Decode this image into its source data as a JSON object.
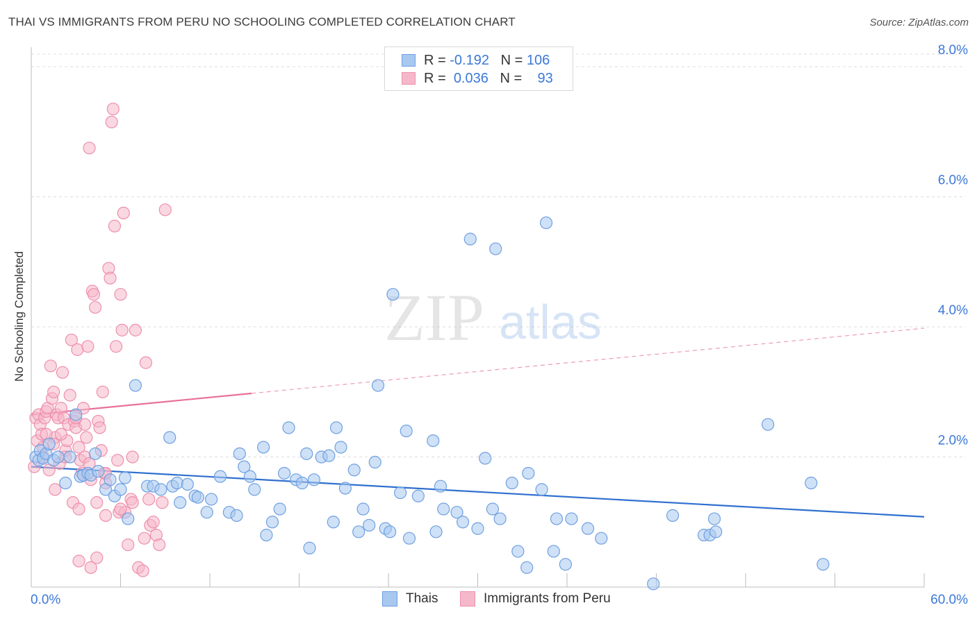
{
  "title": "THAI VS IMMIGRANTS FROM PERU NO SCHOOLING COMPLETED CORRELATION CHART",
  "source": "Source: ZipAtlas.com",
  "watermark": {
    "zip": "ZIP",
    "atlas": "atlas"
  },
  "legend": {
    "rows": [
      {
        "r_label": "R =",
        "r_value": "-0.192",
        "n_label": "N =",
        "n_value": "106",
        "color": "#a8c8f0"
      },
      {
        "r_label": "R =",
        "r_value": "0.036",
        "n_label": "N =",
        "n_value": "93",
        "color": "#f5b8cb"
      }
    ]
  },
  "bottom_legend": [
    {
      "label": "Thais",
      "color": "#a8c8f0"
    },
    {
      "label": "Immigrants from Peru",
      "color": "#f5b8cb"
    }
  ],
  "chart_data": {
    "type": "scatter",
    "title": "THAI VS IMMIGRANTS FROM PERU NO SCHOOLING COMPLETED CORRELATION CHART",
    "xlabel": "",
    "ylabel": "No Schooling Completed",
    "xlim": [
      0,
      60
    ],
    "ylim": [
      0,
      8.3
    ],
    "x_tick_labels": [
      "0.0%",
      "60.0%"
    ],
    "y_ticks": [
      2,
      4,
      6,
      8
    ],
    "y_tick_labels": [
      "2.0%",
      "4.0%",
      "6.0%",
      "8.0%"
    ],
    "grid": true,
    "legend_position": "top-center",
    "series": [
      {
        "name": "Thais",
        "color": "#6fa0e0",
        "fill": "#a8c8f0",
        "trend": {
          "x0": 0,
          "y0": 1.85,
          "x1": 60,
          "y1": 1.08,
          "solid_to": 60,
          "color": "#2f6fcf"
        },
        "points": [
          [
            0.3,
            2.0
          ],
          [
            0.5,
            1.95
          ],
          [
            0.6,
            2.1
          ],
          [
            0.8,
            1.98
          ],
          [
            1.0,
            2.05
          ],
          [
            1.2,
            2.2
          ],
          [
            1.5,
            1.95
          ],
          [
            1.8,
            2.0
          ],
          [
            2.3,
            1.6
          ],
          [
            2.6,
            2.0
          ],
          [
            3.0,
            2.65
          ],
          [
            3.3,
            1.7
          ],
          [
            3.5,
            1.72
          ],
          [
            3.8,
            1.75
          ],
          [
            4.0,
            1.72
          ],
          [
            4.3,
            2.05
          ],
          [
            4.5,
            1.78
          ],
          [
            5.0,
            1.5
          ],
          [
            5.3,
            1.65
          ],
          [
            5.6,
            1.4
          ],
          [
            6.0,
            1.5
          ],
          [
            6.3,
            1.68
          ],
          [
            6.5,
            1.05
          ],
          [
            7.0,
            3.1
          ],
          [
            7.8,
            1.55
          ],
          [
            8.2,
            1.55
          ],
          [
            8.7,
            1.5
          ],
          [
            9.3,
            2.3
          ],
          [
            9.5,
            1.55
          ],
          [
            9.8,
            1.6
          ],
          [
            10.0,
            1.3
          ],
          [
            10.5,
            1.58
          ],
          [
            11.0,
            1.4
          ],
          [
            11.2,
            1.38
          ],
          [
            11.8,
            1.15
          ],
          [
            12.1,
            1.35
          ],
          [
            12.7,
            1.7
          ],
          [
            13.3,
            1.15
          ],
          [
            13.8,
            1.1
          ],
          [
            14.0,
            2.05
          ],
          [
            14.3,
            1.85
          ],
          [
            14.7,
            1.7
          ],
          [
            15.0,
            1.5
          ],
          [
            15.6,
            2.15
          ],
          [
            15.8,
            0.8
          ],
          [
            16.2,
            1.0
          ],
          [
            16.7,
            1.2
          ],
          [
            17.0,
            1.75
          ],
          [
            17.3,
            2.45
          ],
          [
            17.8,
            1.65
          ],
          [
            18.2,
            1.6
          ],
          [
            18.5,
            2.05
          ],
          [
            18.7,
            0.6
          ],
          [
            19.0,
            1.65
          ],
          [
            19.5,
            2.0
          ],
          [
            20.0,
            2.02
          ],
          [
            20.3,
            1.0
          ],
          [
            20.5,
            2.45
          ],
          [
            20.8,
            2.15
          ],
          [
            21.1,
            1.52
          ],
          [
            21.7,
            1.8
          ],
          [
            22.0,
            0.85
          ],
          [
            22.3,
            1.2
          ],
          [
            22.7,
            0.95
          ],
          [
            23.1,
            1.92
          ],
          [
            23.3,
            3.1
          ],
          [
            23.8,
            0.9
          ],
          [
            24.1,
            0.85
          ],
          [
            24.3,
            4.5
          ],
          [
            24.8,
            1.45
          ],
          [
            25.2,
            2.4
          ],
          [
            25.4,
            0.75
          ],
          [
            26.0,
            1.4
          ],
          [
            27.0,
            2.25
          ],
          [
            27.2,
            0.85
          ],
          [
            27.5,
            1.55
          ],
          [
            27.7,
            1.2
          ],
          [
            28.6,
            1.15
          ],
          [
            29.0,
            1.0
          ],
          [
            29.5,
            5.35
          ],
          [
            30.0,
            0.9
          ],
          [
            30.5,
            1.98
          ],
          [
            31.0,
            1.2
          ],
          [
            31.5,
            1.05
          ],
          [
            31.2,
            5.2
          ],
          [
            32.3,
            1.6
          ],
          [
            32.7,
            0.55
          ],
          [
            33.3,
            0.3
          ],
          [
            33.4,
            1.75
          ],
          [
            34.3,
            1.5
          ],
          [
            34.6,
            5.6
          ],
          [
            35.1,
            0.55
          ],
          [
            35.3,
            1.05
          ],
          [
            35.9,
            0.35
          ],
          [
            36.3,
            1.05
          ],
          [
            37.4,
            0.9
          ],
          [
            38.3,
            0.75
          ],
          [
            41.8,
            0.05
          ],
          [
            43.1,
            1.1
          ],
          [
            45.2,
            0.8
          ],
          [
            45.6,
            0.8
          ],
          [
            45.9,
            1.05
          ],
          [
            46.0,
            0.85
          ],
          [
            49.5,
            2.5
          ],
          [
            52.4,
            1.6
          ],
          [
            53.2,
            0.35
          ]
        ]
      },
      {
        "name": "Immigrants from Peru",
        "color": "#ee8fac",
        "fill": "#f5b8cb",
        "trend": {
          "x0": 0,
          "y0": 2.65,
          "x1": 60,
          "y1": 3.98,
          "solid_to": 14.8,
          "color": "#e8709a"
        },
        "points": [
          [
            0.2,
            1.85
          ],
          [
            0.3,
            2.6
          ],
          [
            0.4,
            2.25
          ],
          [
            0.5,
            2.65
          ],
          [
            0.6,
            2.5
          ],
          [
            0.7,
            2.35
          ],
          [
            0.8,
            2.15
          ],
          [
            0.9,
            2.6
          ],
          [
            1.0,
            2.7
          ],
          [
            1.1,
            2.75
          ],
          [
            1.2,
            1.8
          ],
          [
            1.3,
            3.4
          ],
          [
            1.4,
            2.9
          ],
          [
            1.5,
            3.0
          ],
          [
            1.6,
            2.3
          ],
          [
            1.7,
            2.65
          ],
          [
            1.8,
            2.6
          ],
          [
            1.9,
            1.9
          ],
          [
            2.0,
            2.75
          ],
          [
            2.1,
            3.3
          ],
          [
            2.2,
            2.6
          ],
          [
            2.3,
            2.1
          ],
          [
            2.4,
            2.25
          ],
          [
            2.5,
            2.5
          ],
          [
            2.6,
            2.95
          ],
          [
            2.7,
            3.8
          ],
          [
            2.8,
            1.3
          ],
          [
            2.9,
            2.55
          ],
          [
            3.0,
            2.45
          ],
          [
            3.1,
            3.65
          ],
          [
            3.2,
            2.15
          ],
          [
            3.3,
            1.95
          ],
          [
            3.4,
            1.75
          ],
          [
            3.5,
            2.75
          ],
          [
            3.6,
            2.5
          ],
          [
            3.7,
            2.3
          ],
          [
            3.8,
            3.7
          ],
          [
            3.9,
            6.75
          ],
          [
            4.0,
            1.65
          ],
          [
            4.1,
            4.55
          ],
          [
            4.2,
            4.5
          ],
          [
            4.3,
            4.3
          ],
          [
            4.4,
            1.3
          ],
          [
            4.5,
            2.55
          ],
          [
            4.6,
            2.45
          ],
          [
            4.7,
            2.1
          ],
          [
            4.8,
            3.0
          ],
          [
            4.9,
            1.75
          ],
          [
            5.0,
            1.6
          ],
          [
            5.2,
            4.9
          ],
          [
            5.3,
            4.75
          ],
          [
            5.4,
            7.15
          ],
          [
            5.5,
            7.35
          ],
          [
            5.6,
            5.55
          ],
          [
            5.7,
            3.7
          ],
          [
            5.8,
            1.95
          ],
          [
            5.9,
            1.15
          ],
          [
            6.0,
            4.5
          ],
          [
            6.1,
            3.95
          ],
          [
            6.2,
            5.75
          ],
          [
            6.3,
            1.15
          ],
          [
            6.5,
            0.65
          ],
          [
            6.7,
            1.35
          ],
          [
            6.8,
            1.3
          ],
          [
            7.0,
            3.95
          ],
          [
            7.2,
            0.3
          ],
          [
            7.5,
            0.25
          ],
          [
            7.7,
            3.45
          ],
          [
            7.9,
            1.35
          ],
          [
            8.0,
            0.95
          ],
          [
            8.2,
            1.0
          ],
          [
            8.4,
            0.8
          ],
          [
            8.6,
            0.65
          ],
          [
            8.8,
            1.3
          ],
          [
            9.0,
            5.8
          ],
          [
            1.0,
            2.35
          ],
          [
            2.0,
            2.35
          ],
          [
            3.0,
            2.6
          ],
          [
            4.0,
            0.3
          ],
          [
            5.0,
            1.75
          ],
          [
            5.0,
            1.1
          ],
          [
            6.0,
            1.2
          ],
          [
            6.8,
            2.0
          ],
          [
            7.6,
            0.75
          ],
          [
            3.2,
            0.4
          ],
          [
            4.4,
            0.45
          ],
          [
            3.6,
            2.0
          ],
          [
            3.2,
            1.2
          ],
          [
            2.3,
            2.0
          ],
          [
            1.6,
            1.5
          ],
          [
            0.8,
            2.0
          ],
          [
            1.5,
            2.2
          ],
          [
            3.9,
            1.9
          ]
        ]
      }
    ]
  }
}
